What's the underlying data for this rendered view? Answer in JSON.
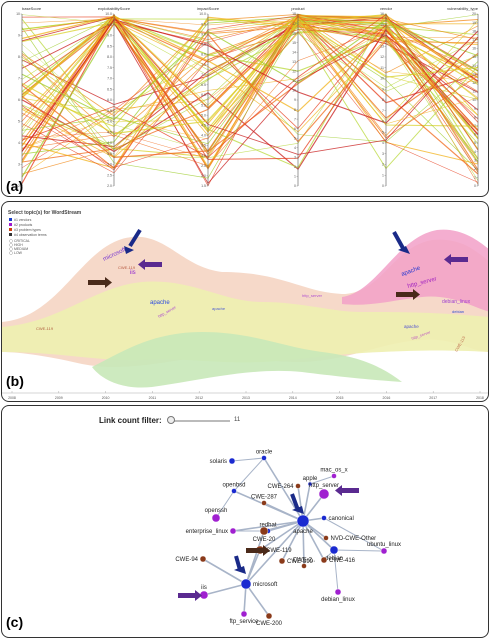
{
  "panel_a": {
    "label": "(a)",
    "axes": [
      {
        "name": "baseScore",
        "ticks": [
          "10",
          "9",
          "8",
          "7",
          "6",
          "5",
          "4",
          "3",
          "2"
        ]
      },
      {
        "name": "exploitabilityScore",
        "ticks": [
          "10.0",
          "9.5",
          "9.0",
          "8.5",
          "8.0",
          "7.5",
          "7.0",
          "6.5",
          "6.0",
          "5.5",
          "5.0",
          "4.5",
          "4.0",
          "3.5",
          "3.0",
          "2.5",
          "2.0"
        ]
      },
      {
        "name": "impactScore",
        "ticks": [
          "10.0",
          "9.5",
          "9.0",
          "8.5",
          "8.0",
          "7.5",
          "7.0",
          "6.5",
          "6.0",
          "5.5",
          "5.0",
          "4.5",
          "4.0",
          "3.5",
          "3.0",
          "2.5",
          "2.0",
          "1.5"
        ]
      },
      {
        "name": "product",
        "ticks": [
          "18",
          "17",
          "16",
          "15",
          "14",
          "13",
          "12",
          "11",
          "10",
          "9",
          "8",
          "7",
          "6",
          "5",
          "4",
          "3",
          "2",
          "1",
          "0"
        ]
      },
      {
        "name": "vendor",
        "ticks": [
          "16",
          "15",
          "14",
          "13",
          "12",
          "11",
          "10",
          "9",
          "8",
          "7",
          "6",
          "5",
          "4",
          "3",
          "2",
          "1",
          "0"
        ]
      },
      {
        "name": "vulnerability_type",
        "ticks": [
          "20",
          "19",
          "18",
          "17",
          "16",
          "15",
          "14",
          "13",
          "12",
          "11",
          "10",
          "9",
          "8",
          "7",
          "6",
          "5",
          "4",
          "3",
          "2",
          "1",
          "0"
        ]
      }
    ]
  },
  "panel_b": {
    "label": "(b)",
    "title": "Select topic(s) for WordStream",
    "legend": [
      {
        "label": "#1 vendors",
        "color": "#1a3ec8"
      },
      {
        "label": "#2 products",
        "color": "#a01ad0"
      },
      {
        "label": "#3 problem types",
        "color": "#d04010"
      },
      {
        "label": "#4 observation terms",
        "color": "#333333"
      }
    ],
    "severity": [
      "CRITICAL",
      "HIGH",
      "MEDIUM",
      "LOW"
    ],
    "years": [
      "2008",
      "2009",
      "2010",
      "2011",
      "2012",
      "2013",
      "2014",
      "2015",
      "2016",
      "2017",
      "2018"
    ],
    "words": [
      {
        "text": "microsoft",
        "color": "#7a3ad0"
      },
      {
        "text": "iis",
        "color": "#8a1ad0"
      },
      {
        "text": "CWE-119",
        "color": "#b85a40"
      },
      {
        "text": "apache",
        "color": "#2a4ae0"
      },
      {
        "text": "http_server",
        "color": "#b050d0"
      },
      {
        "text": "apache",
        "color": "#2a3ad0"
      },
      {
        "text": "http_server",
        "color": "#a020c0"
      },
      {
        "text": "debian_linux",
        "color": "#a040d0"
      },
      {
        "text": "debian",
        "color": "#3050d0"
      },
      {
        "text": "apache",
        "color": "#5050d0"
      },
      {
        "text": "CWE-119",
        "color": "#b06040"
      },
      {
        "text": "http_server",
        "color": "#b050d0"
      },
      {
        "text": "apache",
        "color": "#5060d0"
      },
      {
        "text": "http_server",
        "color": "#c060c0"
      },
      {
        "text": "CWE-119",
        "color": "#c07050"
      }
    ]
  },
  "panel_c": {
    "label": "(c)",
    "filter_label": "Link count filter:",
    "filter_value": "11",
    "filter_fraction": 0.05,
    "nodes": [
      {
        "id": "solaris",
        "label": "solaris",
        "color": "#1a2ad0"
      },
      {
        "id": "oracle",
        "label": "oracle",
        "color": "#1a2ad0"
      },
      {
        "id": "mac_os_x",
        "label": "mac_os_x",
        "color": "#a020d0"
      },
      {
        "id": "cwe264",
        "label": "CWE-264",
        "color": "#8a3a1a"
      },
      {
        "id": "apple",
        "label": "apple",
        "color": "#1a2ad0"
      },
      {
        "id": "cwe287",
        "label": "CWE-287",
        "color": "#8a3a1a"
      },
      {
        "id": "openbsd",
        "label": "openbsd",
        "color": "#1a2ad0"
      },
      {
        "id": "http_server",
        "label": "http_server",
        "color": "#a020d0"
      },
      {
        "id": "canonical",
        "label": "canonical",
        "color": "#1a2ad0"
      },
      {
        "id": "openssh",
        "label": "openssh",
        "color": "#a020d0"
      },
      {
        "id": "redhat",
        "label": "redhat",
        "color": "#1a2ad0"
      },
      {
        "id": "apache",
        "label": "apache",
        "color": "#1a2ad0"
      },
      {
        "id": "nvd",
        "label": "NVD-CWE-Other",
        "color": "#8a3a1a"
      },
      {
        "id": "enterprise_linux",
        "label": "enterprise_linux",
        "color": "#a020d0"
      },
      {
        "id": "cwe20",
        "label": "CWE-20",
        "color": "#8a3a1a"
      },
      {
        "id": "debian",
        "label": "debian",
        "color": "#1a2ad0"
      },
      {
        "id": "ubuntu_linux",
        "label": "ubuntu_linux",
        "color": "#a020d0"
      },
      {
        "id": "cwe119",
        "label": "CWE-119",
        "color": "#8a3a1a"
      },
      {
        "id": "cwe399",
        "label": "CWE-399",
        "color": "#8a3a1a"
      },
      {
        "id": "cwe416",
        "label": "CWE-416",
        "color": "#8a3a1a"
      },
      {
        "id": "cwe2x",
        "label": "CWE-2..",
        "color": "#8a3a1a"
      },
      {
        "id": "cwe94",
        "label": "CWE-94",
        "color": "#8a3a1a"
      },
      {
        "id": "microsoft",
        "label": "microsoft",
        "color": "#1a2ad0"
      },
      {
        "id": "debian_linux",
        "label": "debian_linux",
        "color": "#a020d0"
      },
      {
        "id": "iis",
        "label": "iis",
        "color": "#a020d0"
      },
      {
        "id": "cwe200",
        "label": "CWE-200",
        "color": "#8a3a1a"
      },
      {
        "id": "ftp_service",
        "label": "ftp_service",
        "color": "#a020d0"
      }
    ]
  }
}
